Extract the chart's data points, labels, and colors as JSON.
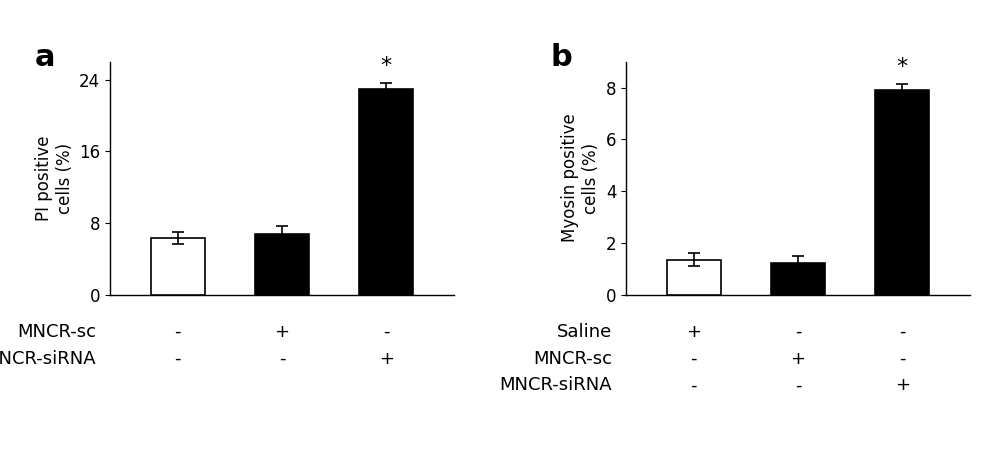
{
  "panel_a": {
    "title": "a",
    "values": [
      6.3,
      6.8,
      23.0
    ],
    "errors": [
      0.7,
      0.8,
      0.6
    ],
    "colors": [
      "#ffffff",
      "#000000",
      "#000000"
    ],
    "edgecolors": [
      "#000000",
      "#000000",
      "#000000"
    ],
    "ylabel": "PI positive\ncells (%)",
    "ylim": [
      0,
      26
    ],
    "yticks": [
      0,
      8,
      16,
      24
    ],
    "bar_positions": [
      1,
      2,
      3
    ],
    "significance": [
      false,
      false,
      true
    ],
    "sig_label": "*",
    "row_labels": [
      "MNCR-sc",
      "MNCR-siRNA"
    ],
    "row_values": [
      [
        "-",
        "+",
        "-"
      ],
      [
        "-",
        "-",
        "+"
      ]
    ]
  },
  "panel_b": {
    "title": "b",
    "values": [
      1.35,
      1.2,
      7.9
    ],
    "errors": [
      0.25,
      0.3,
      0.25
    ],
    "colors": [
      "#ffffff",
      "#000000",
      "#000000"
    ],
    "edgecolors": [
      "#000000",
      "#000000",
      "#000000"
    ],
    "ylabel": "Myosin positive\ncells (%)",
    "ylim": [
      0,
      9
    ],
    "yticks": [
      0,
      2,
      4,
      6,
      8
    ],
    "bar_positions": [
      1,
      2,
      3
    ],
    "significance": [
      false,
      false,
      true
    ],
    "sig_label": "*",
    "row_labels": [
      "Saline",
      "MNCR-sc",
      "MNCR-siRNA"
    ],
    "row_values": [
      [
        "+",
        "-",
        "-"
      ],
      [
        "-",
        "+",
        "-"
      ],
      [
        "-",
        "-",
        "+"
      ]
    ]
  },
  "background_color": "#ffffff",
  "bar_width": 0.52,
  "fontsize_title": 22,
  "fontsize_ylabel": 12,
  "fontsize_ticks": 12,
  "fontsize_table": 13,
  "fontsize_sig": 16
}
